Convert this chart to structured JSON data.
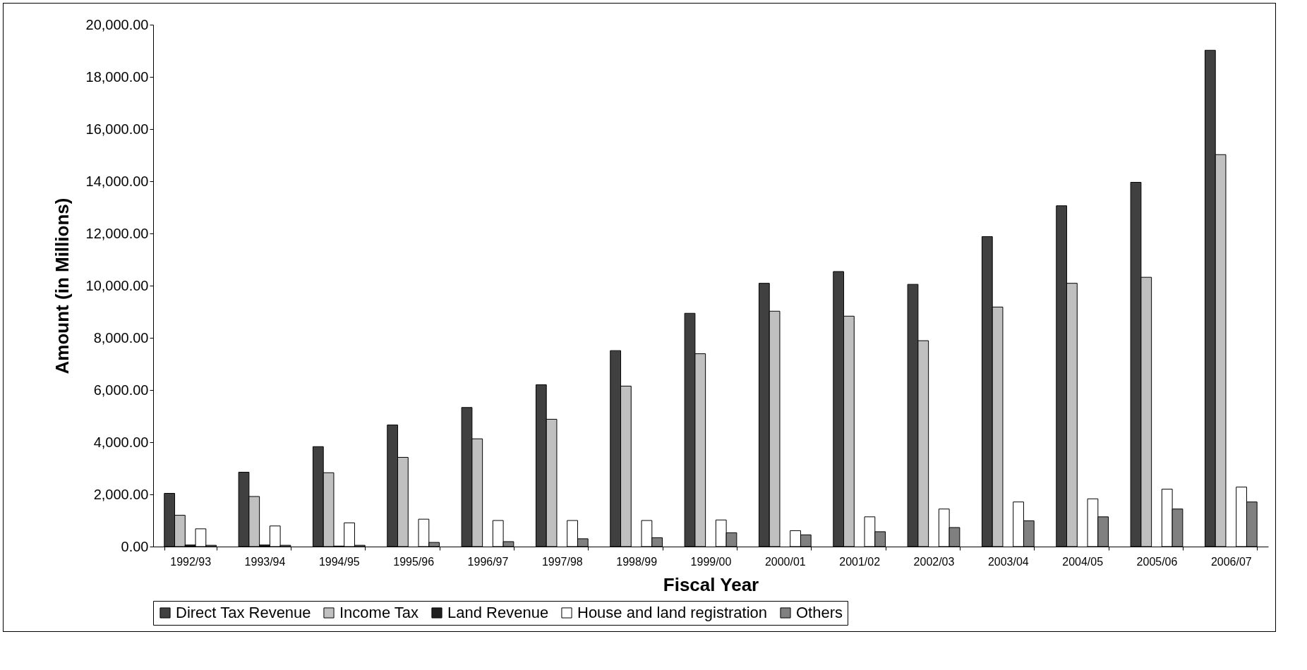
{
  "chart_data": {
    "type": "bar",
    "xlabel": "Fiscal Year",
    "ylabel": "Amount (in Millions)",
    "categories": [
      "1992/93",
      "1993/94",
      "1994/95",
      "1995/96",
      "1996/97",
      "1997/98",
      "1998/99",
      "1999/00",
      "2000/01",
      "2001/02",
      "2002/03",
      "2003/04",
      "2004/05",
      "2005/06",
      "2006/07"
    ],
    "series": [
      {
        "name": "Direct Tax Revenue",
        "color": "#404040",
        "values": [
          2040,
          2850,
          3830,
          4660,
          5330,
          6200,
          7510,
          8940,
          10090,
          10540,
          10050,
          11880,
          13060,
          13960,
          19020
        ]
      },
      {
        "name": "Income Tax",
        "color": "#c0c0c0",
        "values": [
          1200,
          1920,
          2830,
          3420,
          4130,
          4880,
          6150,
          7390,
          9020,
          8830,
          7890,
          9180,
          10090,
          10320,
          15020
        ]
      },
      {
        "name": "Land Revenue",
        "color": "#202020",
        "values": [
          60,
          60,
          20,
          null,
          null,
          null,
          null,
          null,
          null,
          null,
          null,
          null,
          null,
          null,
          null
        ]
      },
      {
        "name": "House and land registration",
        "color": "#ffffff",
        "values": [
          680,
          790,
          910,
          1050,
          1000,
          1000,
          1000,
          1020,
          610,
          1140,
          1440,
          1710,
          1830,
          2200,
          2280
        ]
      },
      {
        "name": "Others",
        "color": "#808080",
        "values": [
          50,
          50,
          50,
          160,
          190,
          300,
          340,
          530,
          450,
          570,
          730,
          990,
          1140,
          1440,
          1710
        ]
      }
    ],
    "ylim": [
      0,
      20000
    ],
    "yticks": [
      {
        "value": 0,
        "label": "0.00"
      },
      {
        "value": 2000,
        "label": "2,000.00"
      },
      {
        "value": 4000,
        "label": "4,000.00"
      },
      {
        "value": 6000,
        "label": "6,000.00"
      },
      {
        "value": 8000,
        "label": "8,000.00"
      },
      {
        "value": 10000,
        "label": "10,000.00"
      },
      {
        "value": 12000,
        "label": "12,000.00"
      },
      {
        "value": 14000,
        "label": "14,000.00"
      },
      {
        "value": 16000,
        "label": "16,000.00"
      },
      {
        "value": 18000,
        "label": "18,000.00"
      },
      {
        "value": 20000,
        "label": "20,000.00"
      }
    ],
    "grid": false,
    "legend": "bottom"
  }
}
